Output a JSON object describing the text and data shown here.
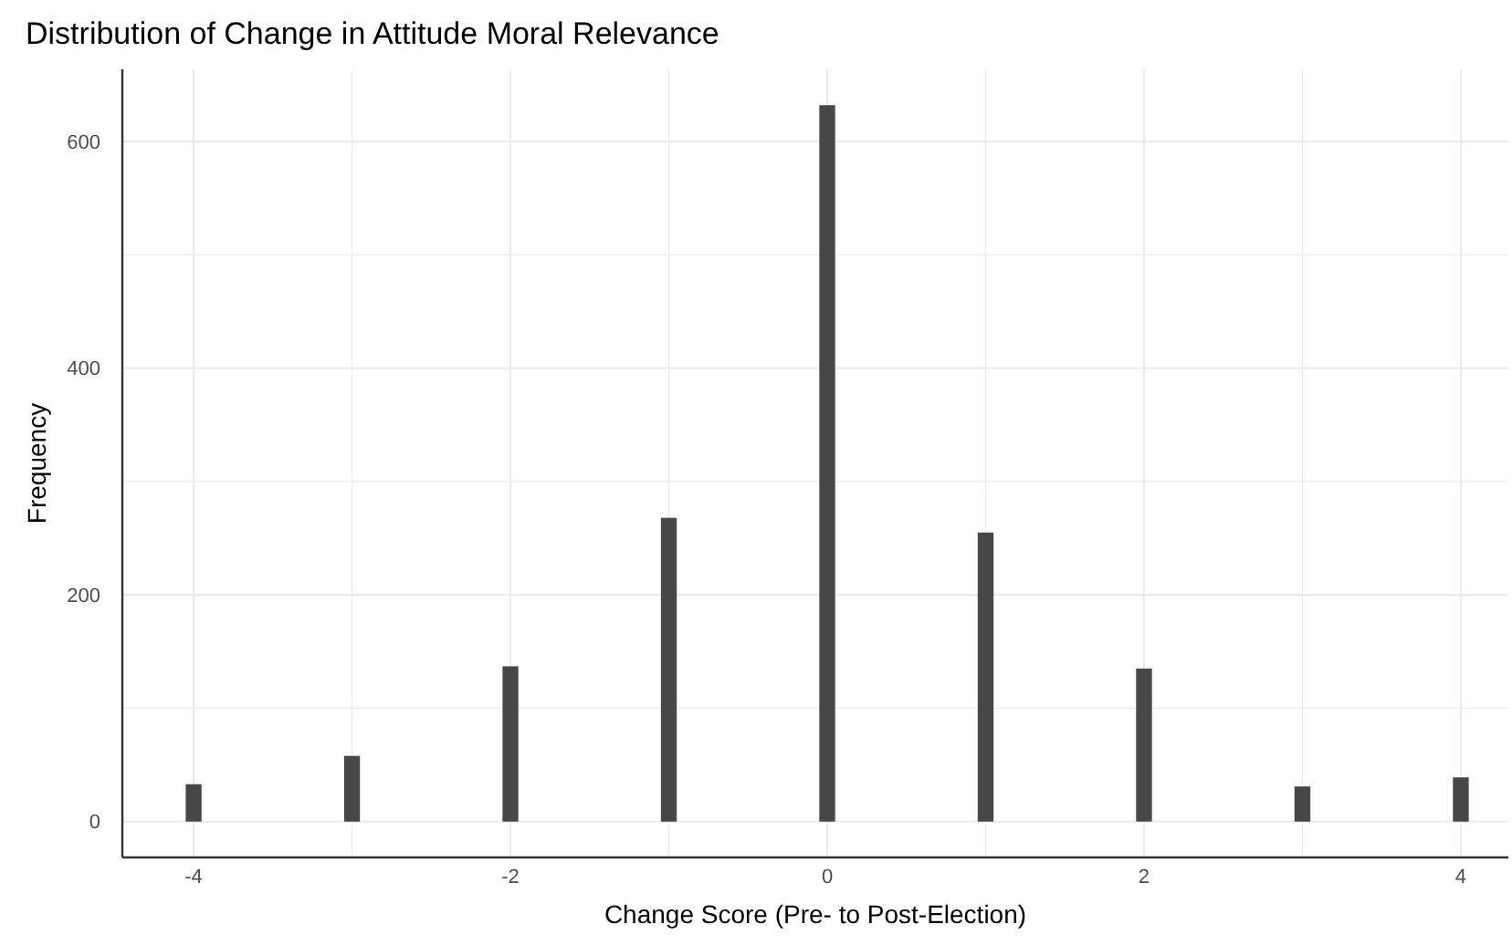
{
  "chart_data": {
    "type": "bar",
    "title": "Distribution of Change in Attitude Moral Relevance",
    "xlabel": "Change Score (Pre- to Post-Election)",
    "ylabel": "Frequency",
    "x": [
      -4,
      -3,
      -2,
      -1,
      0,
      1,
      2,
      3,
      4
    ],
    "values": [
      33,
      58,
      137,
      268,
      632,
      255,
      135,
      31,
      39
    ],
    "color": "#474747",
    "xlim": [
      -4.45,
      4.3
    ],
    "ylim": [
      -31.6,
      663.6
    ],
    "xticks": [
      -4,
      {
        "value": -3,
        "label": null
      },
      -2,
      {
        "value": -1,
        "label": null
      },
      0,
      {
        "value": 1,
        "label": null
      },
      2,
      {
        "value": 3,
        "label": null
      },
      4
    ],
    "yticks": [
      0,
      {
        "value": 100,
        "label": null
      },
      200,
      {
        "value": 300,
        "label": null
      },
      400,
      {
        "value": 500,
        "label": null
      },
      600
    ],
    "grid": true
  }
}
